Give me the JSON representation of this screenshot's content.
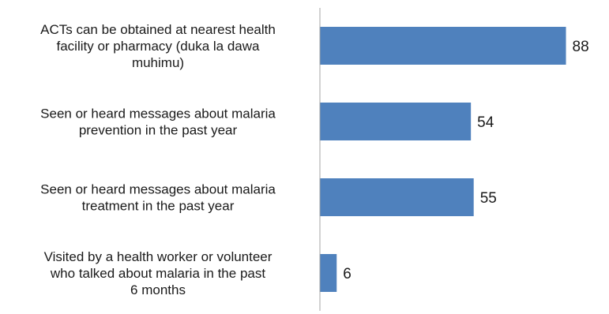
{
  "chart_data": {
    "type": "bar",
    "orientation": "horizontal",
    "categories": [
      [
        "ACTs can be obtained at nearest health",
        "facility or pharmacy (duka la dawa",
        "muhimu)"
      ],
      [
        "Seen or heard messages about malaria",
        "prevention in the past year"
      ],
      [
        "Seen or heard messages about malaria",
        "treatment in the past year"
      ],
      [
        "Visited by a health worker or volunteer",
        "who talked about malaria in the past",
        "6 months"
      ]
    ],
    "values": [
      88,
      54,
      55,
      6
    ],
    "data_labels": [
      "88",
      "54",
      "55",
      "6"
    ],
    "xlim": [
      0,
      100
    ],
    "bar_color": "#4f81bd",
    "axis_color": "#a6a6a6",
    "grid": false,
    "legend": "none"
  }
}
